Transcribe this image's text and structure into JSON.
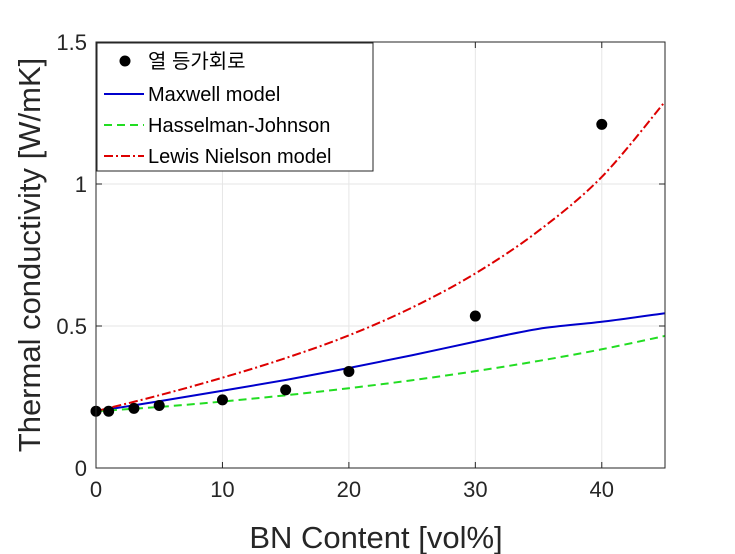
{
  "chart_data": {
    "type": "line",
    "xlabel": "BN Content [vol%]",
    "ylabel": "Thermal conductivity [W/mK]",
    "xlim": [
      0,
      45
    ],
    "ylim": [
      0,
      1.5
    ],
    "xticks": [
      0,
      10,
      20,
      30,
      40
    ],
    "yticks": [
      0,
      0.5,
      1,
      1.5
    ],
    "xtick_labels": [
      "0",
      "10",
      "20",
      "30",
      "40"
    ],
    "ytick_labels": [
      "0",
      "0.5",
      "1",
      "1.5"
    ],
    "grid": true,
    "legend_position": "top-left",
    "x": [
      0,
      5,
      10,
      15,
      20,
      25,
      30,
      35,
      40,
      45
    ],
    "series": [
      {
        "name": "열 등가회로",
        "kind": "scatter",
        "color": "#000000",
        "points": [
          [
            0,
            0.2
          ],
          [
            1,
            0.2
          ],
          [
            3,
            0.21
          ],
          [
            5,
            0.22
          ],
          [
            10,
            0.24
          ],
          [
            15,
            0.275
          ],
          [
            20,
            0.34
          ],
          [
            30,
            0.535
          ],
          [
            40,
            1.21
          ]
        ]
      },
      {
        "name": "Maxwell model",
        "kind": "line",
        "style": "solid",
        "color": "#0000cc",
        "values": [
          0.2,
          0.235,
          0.272,
          0.31,
          0.352,
          0.397,
          0.445,
          0.49,
          0.515,
          0.545
        ]
      },
      {
        "name": "Hasselman-Johnson",
        "kind": "line",
        "style": "dashed",
        "color": "#22dd22",
        "values": [
          0.2,
          0.215,
          0.234,
          0.256,
          0.281,
          0.309,
          0.341,
          0.377,
          0.418,
          0.465
        ]
      },
      {
        "name": "Lewis Nielson model",
        "kind": "line",
        "style": "dashdot",
        "color": "#dd0000",
        "values": [
          0.2,
          0.256,
          0.318,
          0.387,
          0.467,
          0.565,
          0.685,
          0.835,
          1.025,
          1.29
        ]
      }
    ]
  }
}
